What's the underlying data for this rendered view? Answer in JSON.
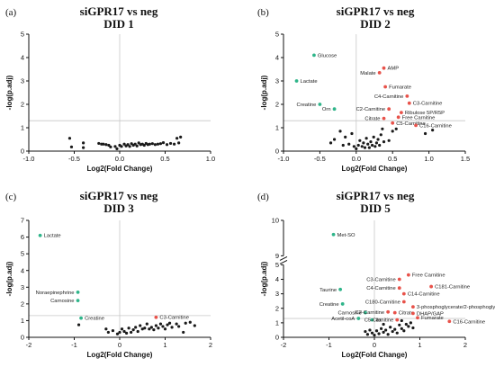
{
  "colors": {
    "sig_up": "#e8524a",
    "sig_down": "#2fb58a",
    "nonsig": "#1a1a1a",
    "threshold": "#c8c8c8",
    "zero": "#c8c8c8",
    "axis": "#111111"
  },
  "chart_data": [
    {
      "type": "scatter",
      "panel": "(a)",
      "title": "siGPR17 vs neg",
      "subtitle": "DID 1",
      "xlabel": "Log2(Fold Change)",
      "ylabel": "-log(p.adj)",
      "xlim": [
        -1.0,
        1.0
      ],
      "ylim": [
        0,
        5
      ],
      "xticks": [
        "-1.0",
        "-0.5",
        "0.0",
        "0.5",
        "1.0"
      ],
      "yticks": [
        "0",
        "1",
        "2",
        "3",
        "4",
        "5"
      ],
      "threshold_y": 1.3,
      "nonsig": [
        [
          -0.55,
          0.55
        ],
        [
          -0.53,
          0.18
        ],
        [
          -0.4,
          0.35
        ],
        [
          -0.4,
          0.15
        ],
        [
          -0.23,
          0.33
        ],
        [
          -0.2,
          0.3
        ],
        [
          -0.18,
          0.3
        ],
        [
          -0.15,
          0.28
        ],
        [
          -0.12,
          0.25
        ],
        [
          -0.1,
          0.18
        ],
        [
          -0.05,
          0.2
        ],
        [
          -0.03,
          0.1
        ],
        [
          0.0,
          0.25
        ],
        [
          0.02,
          0.2
        ],
        [
          0.05,
          0.3
        ],
        [
          0.07,
          0.22
        ],
        [
          0.09,
          0.28
        ],
        [
          0.11,
          0.2
        ],
        [
          0.13,
          0.32
        ],
        [
          0.15,
          0.25
        ],
        [
          0.17,
          0.3
        ],
        [
          0.19,
          0.22
        ],
        [
          0.21,
          0.35
        ],
        [
          0.23,
          0.28
        ],
        [
          0.25,
          0.3
        ],
        [
          0.27,
          0.25
        ],
        [
          0.29,
          0.33
        ],
        [
          0.31,
          0.28
        ],
        [
          0.33,
          0.3
        ],
        [
          0.36,
          0.32
        ],
        [
          0.39,
          0.28
        ],
        [
          0.42,
          0.3
        ],
        [
          0.45,
          0.32
        ],
        [
          0.48,
          0.36
        ],
        [
          0.52,
          0.28
        ],
        [
          0.56,
          0.33
        ],
        [
          0.6,
          0.3
        ],
        [
          0.63,
          0.55
        ],
        [
          0.65,
          0.35
        ],
        [
          0.67,
          0.6
        ]
      ],
      "sig": []
    },
    {
      "type": "scatter",
      "panel": "(b)",
      "title": "siGPR17 vs neg",
      "subtitle": "DID 2",
      "xlabel": "Log2(Fold Change)",
      "ylabel": "-log(p.adj)",
      "xlim": [
        -1.0,
        1.5
      ],
      "ylim": [
        0,
        5
      ],
      "xticks": [
        "-1.0",
        "-0.5",
        "0.0",
        "0.5",
        "1.0",
        "1.5"
      ],
      "yticks": [
        "0",
        "1",
        "2",
        "3",
        "4",
        "5"
      ],
      "threshold_y": 1.3,
      "nonsig": [
        [
          -0.35,
          0.35
        ],
        [
          -0.3,
          0.5
        ],
        [
          -0.22,
          0.85
        ],
        [
          -0.18,
          0.25
        ],
        [
          -0.15,
          0.6
        ],
        [
          -0.1,
          0.3
        ],
        [
          -0.06,
          0.75
        ],
        [
          -0.03,
          0.2
        ],
        [
          0.0,
          0.1
        ],
        [
          0.03,
          0.25
        ],
        [
          0.05,
          0.45
        ],
        [
          0.08,
          0.2
        ],
        [
          0.1,
          0.35
        ],
        [
          0.12,
          0.15
        ],
        [
          0.14,
          0.55
        ],
        [
          0.16,
          0.3
        ],
        [
          0.18,
          0.15
        ],
        [
          0.2,
          0.4
        ],
        [
          0.22,
          0.25
        ],
        [
          0.24,
          0.6
        ],
        [
          0.26,
          0.2
        ],
        [
          0.28,
          0.35
        ],
        [
          0.3,
          0.5
        ],
        [
          0.32,
          0.25
        ],
        [
          0.34,
          0.7
        ],
        [
          0.36,
          0.95
        ],
        [
          0.38,
          0.4
        ],
        [
          0.45,
          0.45
        ],
        [
          0.5,
          0.85
        ],
        [
          0.55,
          0.95
        ],
        [
          0.95,
          0.75
        ],
        [
          1.05,
          0.9
        ]
      ],
      "sig": [
        {
          "label": "Glucose",
          "x": -0.58,
          "y": 4.1,
          "dir": "down",
          "side": "right"
        },
        {
          "label": "Lactate",
          "x": -0.82,
          "y": 3.0,
          "dir": "down",
          "side": "right"
        },
        {
          "label": "Creatine",
          "x": -0.5,
          "y": 2.0,
          "dir": "down",
          "side": "left"
        },
        {
          "label": "Orn",
          "x": -0.3,
          "y": 1.8,
          "dir": "down",
          "side": "left"
        },
        {
          "label": "AMP",
          "x": 0.38,
          "y": 3.55,
          "dir": "up",
          "side": "right"
        },
        {
          "label": "Malate",
          "x": 0.32,
          "y": 3.35,
          "dir": "up",
          "side": "left"
        },
        {
          "label": "Fumarate",
          "x": 0.4,
          "y": 2.75,
          "dir": "up",
          "side": "right"
        },
        {
          "label": "C4-Carnitine",
          "x": 0.7,
          "y": 2.35,
          "dir": "up",
          "side": "left"
        },
        {
          "label": "C3-Carnitine",
          "x": 0.73,
          "y": 2.05,
          "dir": "up",
          "side": "right"
        },
        {
          "label": "C2-Carnitine",
          "x": 0.45,
          "y": 1.8,
          "dir": "up",
          "side": "left"
        },
        {
          "label": "Ribulose 5P/R5P",
          "x": 0.62,
          "y": 1.65,
          "dir": "up",
          "side": "right"
        },
        {
          "label": "Citrate",
          "x": 0.38,
          "y": 1.4,
          "dir": "up",
          "side": "left"
        },
        {
          "label": "Free Carnitine",
          "x": 0.58,
          "y": 1.45,
          "dir": "up",
          "side": "right"
        },
        {
          "label": "C5-Carnitine",
          "x": 0.5,
          "y": 1.2,
          "dir": "up",
          "side": "right"
        },
        {
          "label": "C16-Carnitine",
          "x": 0.82,
          "y": 1.1,
          "dir": "up",
          "side": "right"
        }
      ]
    },
    {
      "type": "scatter",
      "panel": "(c)",
      "title": "siGPR17 vs neg",
      "subtitle": "DID 3",
      "xlabel": "Log2(Fold Change)",
      "ylabel": "-log(p.adj)",
      "xlim": [
        -2,
        2
      ],
      "ylim": [
        0,
        7
      ],
      "xticks": [
        "-2",
        "-1",
        "0",
        "1",
        "2"
      ],
      "yticks": [
        "0",
        "1",
        "2",
        "3",
        "4",
        "5",
        "6",
        "7"
      ],
      "threshold_y": 1.3,
      "nonsig": [
        [
          -0.9,
          0.75
        ],
        [
          -0.3,
          0.5
        ],
        [
          -0.25,
          0.3
        ],
        [
          -0.15,
          0.4
        ],
        [
          -0.05,
          0.2
        ],
        [
          0.0,
          0.3
        ],
        [
          0.05,
          0.5
        ],
        [
          0.1,
          0.35
        ],
        [
          0.15,
          0.25
        ],
        [
          0.2,
          0.55
        ],
        [
          0.25,
          0.3
        ],
        [
          0.3,
          0.45
        ],
        [
          0.35,
          0.6
        ],
        [
          0.4,
          0.35
        ],
        [
          0.45,
          0.7
        ],
        [
          0.5,
          0.5
        ],
        [
          0.55,
          0.55
        ],
        [
          0.6,
          0.8
        ],
        [
          0.65,
          0.5
        ],
        [
          0.7,
          0.6
        ],
        [
          0.75,
          0.45
        ],
        [
          0.8,
          0.7
        ],
        [
          0.85,
          0.55
        ],
        [
          0.9,
          0.8
        ],
        [
          0.95,
          0.65
        ],
        [
          1.0,
          0.5
        ],
        [
          1.05,
          0.75
        ],
        [
          1.1,
          0.85
        ],
        [
          1.15,
          0.6
        ],
        [
          1.25,
          0.8
        ],
        [
          1.3,
          0.65
        ],
        [
          1.4,
          0.3
        ],
        [
          1.45,
          0.85
        ],
        [
          1.55,
          0.9
        ],
        [
          1.65,
          0.7
        ]
      ],
      "sig": [
        {
          "label": "Lactate",
          "x": -1.75,
          "y": 6.1,
          "dir": "down",
          "side": "right"
        },
        {
          "label": "Noraepinephrine",
          "x": -0.92,
          "y": 2.7,
          "dir": "down",
          "side": "left"
        },
        {
          "label": "Carnosine",
          "x": -0.92,
          "y": 2.2,
          "dir": "down",
          "side": "left"
        },
        {
          "label": "Creatine",
          "x": -0.85,
          "y": 1.15,
          "dir": "down",
          "side": "right"
        },
        {
          "label": "C3-Carnitine",
          "x": 0.8,
          "y": 1.2,
          "dir": "up",
          "side": "right"
        }
      ]
    },
    {
      "type": "scatter",
      "panel": "(d)",
      "title": "siGPR17 vs neg",
      "subtitle": "DID 5",
      "xlabel": "Log2(Fold Change)",
      "ylabel": "-log(p.adj)",
      "xlim": [
        -2,
        2
      ],
      "ylim": [
        0,
        10
      ],
      "y_break": [
        5,
        9
      ],
      "xticks": [
        "-2",
        "-1",
        "0",
        "1",
        "2"
      ],
      "yticks": [
        "0",
        "1",
        "2",
        "3",
        "4",
        "5",
        "9",
        "10"
      ],
      "threshold_y": 1.3,
      "nonsig": [
        [
          -0.2,
          0.4
        ],
        [
          -0.15,
          0.2
        ],
        [
          -0.1,
          0.5
        ],
        [
          -0.05,
          0.3
        ],
        [
          0.0,
          0.15
        ],
        [
          0.05,
          0.45
        ],
        [
          0.1,
          0.25
        ],
        [
          0.15,
          0.6
        ],
        [
          0.2,
          0.35
        ],
        [
          0.25,
          0.5
        ],
        [
          0.3,
          0.2
        ],
        [
          0.35,
          0.7
        ],
        [
          0.4,
          0.4
        ],
        [
          0.45,
          0.55
        ],
        [
          0.5,
          0.3
        ],
        [
          0.55,
          0.85
        ],
        [
          0.6,
          0.6
        ],
        [
          0.65,
          0.45
        ],
        [
          0.7,
          0.9
        ],
        [
          0.75,
          0.75
        ],
        [
          0.8,
          1.0
        ],
        [
          0.85,
          0.65
        ],
        [
          0.2,
          0.9
        ],
        [
          0.6,
          1.15
        ]
      ],
      "sig": [
        {
          "label": "Met-SO",
          "x": -0.9,
          "y": 9.6,
          "dir": "down",
          "side": "right"
        },
        {
          "label": "Taurine",
          "x": -0.75,
          "y": 3.3,
          "dir": "down",
          "side": "left"
        },
        {
          "label": "Creatine",
          "x": -0.7,
          "y": 2.3,
          "dir": "down",
          "side": "left"
        },
        {
          "label": "Carnosine",
          "x": -0.2,
          "y": 1.7,
          "dir": "down",
          "side": "left"
        },
        {
          "label": "Acetil-coA",
          "x": -0.35,
          "y": 1.3,
          "dir": "down",
          "side": "left"
        },
        {
          "label": "Ila",
          "x": -0.05,
          "y": 1.2,
          "dir": "down",
          "side": "right"
        },
        {
          "label": "Free Carnitine",
          "x": 0.75,
          "y": 4.3,
          "dir": "up",
          "side": "right"
        },
        {
          "label": "C3-Carnitine",
          "x": 0.55,
          "y": 4.0,
          "dir": "up",
          "side": "left"
        },
        {
          "label": "C181-Carnitine",
          "x": 1.25,
          "y": 3.5,
          "dir": "up",
          "side": "right"
        },
        {
          "label": "C4-Carnitine",
          "x": 0.55,
          "y": 3.4,
          "dir": "up",
          "side": "left"
        },
        {
          "label": "C14-Carnitine",
          "x": 0.65,
          "y": 3.0,
          "dir": "up",
          "side": "right"
        },
        {
          "label": "C180-Carnitine",
          "x": 0.65,
          "y": 2.45,
          "dir": "up",
          "side": "left"
        },
        {
          "label": "3-phosphoglycerate/2-phosphoglycerate",
          "x": 0.85,
          "y": 2.1,
          "dir": "up",
          "side": "right"
        },
        {
          "label": "C2-Carnitine",
          "x": 0.3,
          "y": 1.75,
          "dir": "up",
          "side": "left"
        },
        {
          "label": "Citrate",
          "x": 0.45,
          "y": 1.7,
          "dir": "up",
          "side": "right"
        },
        {
          "label": "DHAP/GAP",
          "x": 0.85,
          "y": 1.65,
          "dir": "up",
          "side": "right"
        },
        {
          "label": "C5-Carnitine",
          "x": 0.5,
          "y": 1.2,
          "dir": "up",
          "side": "left"
        },
        {
          "label": "Fumarate",
          "x": 0.95,
          "y": 1.35,
          "dir": "up",
          "side": "right"
        },
        {
          "label": "C16-Carnitine",
          "x": 1.65,
          "y": 1.1,
          "dir": "up",
          "side": "right"
        }
      ]
    }
  ]
}
